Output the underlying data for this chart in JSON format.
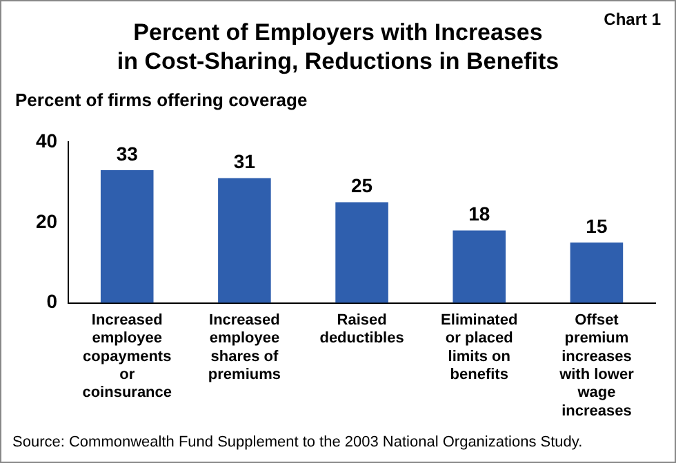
{
  "chart_data": {
    "type": "bar",
    "title": "Percent of Employers with Increases\nin Cost-Sharing, Reductions in Benefits",
    "subtitle": "Chart 1",
    "ylabel": "Percent of firms offering coverage",
    "categories": [
      "Increased employee copayments or coinsurance",
      "Increased employee shares of premiums",
      "Raised deductibles",
      "Eliminated or placed limits on benefits",
      "Offset premium increases with lower wage increases"
    ],
    "values": [
      33,
      31,
      25,
      18,
      15
    ],
    "color": "#2f5fae",
    "ylim": [
      0,
      40
    ],
    "yticks": [
      0,
      20,
      40
    ],
    "grid": false,
    "legend": false,
    "data_labels": true,
    "annotations": [
      "Source: Commonwealth Fund Supplement to the 2003 National Organizations Study."
    ]
  }
}
